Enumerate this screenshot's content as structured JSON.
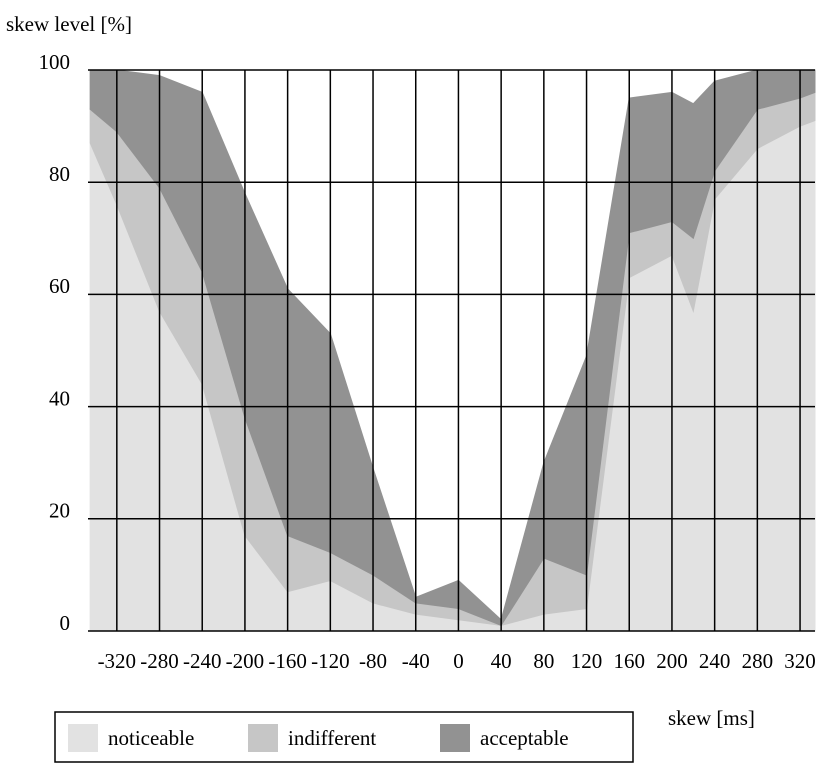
{
  "chart_data": {
    "type": "stacked_area",
    "y_label": "skew level [%]",
    "x_label": "skew [ms]",
    "x": [
      -345,
      -320,
      -280,
      -240,
      -200,
      -160,
      -120,
      -80,
      -40,
      0,
      40,
      80,
      120,
      160,
      200,
      220,
      240,
      280,
      320,
      334
    ],
    "series": [
      {
        "name": "noticeable",
        "color": "#e2e2e2",
        "values": [
          87,
          76,
          57,
          44,
          17,
          7,
          9,
          5,
          3,
          2,
          1,
          3,
          4,
          63,
          67,
          57,
          77,
          86,
          90,
          91
        ]
      },
      {
        "name": "indifferent",
        "color": "#c6c6c6",
        "values": [
          6,
          13,
          22,
          20,
          21,
          10,
          5,
          5,
          2,
          2,
          0,
          10,
          6,
          8,
          6,
          13,
          5,
          7,
          5,
          5
        ]
      },
      {
        "name": "acceptable",
        "color": "#929292",
        "values": [
          7,
          11,
          20,
          32,
          40,
          44,
          39,
          19,
          1,
          5,
          1,
          17,
          39,
          24,
          23,
          24,
          16,
          7,
          5,
          4
        ]
      }
    ],
    "xlim": [
      -347,
      334
    ],
    "ylim": [
      0,
      100
    ],
    "xticks": [
      -320,
      -280,
      -240,
      -200,
      -160,
      -120,
      -80,
      -40,
      0,
      40,
      80,
      120,
      160,
      200,
      240,
      280,
      320
    ],
    "yticks": [
      0,
      20,
      40,
      60,
      80,
      100
    ],
    "grid": true
  }
}
